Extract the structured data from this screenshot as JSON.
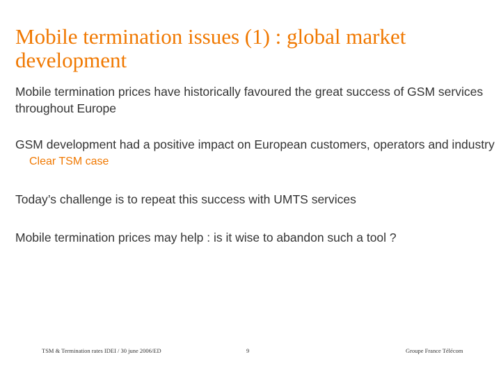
{
  "slide": {
    "title": "Mobile termination issues (1) : global market development",
    "paragraphs": [
      "Mobile termination prices have historically favoured the great success of GSM services throughout Europe",
      "GSM development had a positive impact on European customers, operators and  industry",
      "Today’s challenge is to repeat this success with UMTS services",
      "Mobile termination prices may help : is it wise to abandon such a tool ?"
    ],
    "sub_point": "Clear TSM case",
    "colors": {
      "accent": "#f07800",
      "text": "#333333",
      "background": "#ffffff"
    }
  },
  "footer": {
    "left": "TSM & Termination rates IDEI / 30 june 2006/ED",
    "page_number": "9",
    "right": "Groupe France Télécom"
  }
}
